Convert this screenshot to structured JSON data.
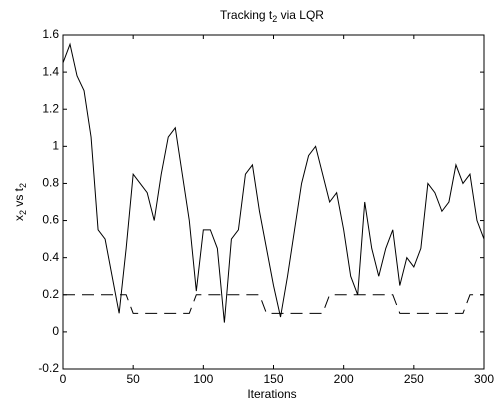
{
  "chart_data": {
    "type": "line",
    "title": [
      "Tracking t",
      "2",
      " via LQR"
    ],
    "y_label": [
      "x",
      "2",
      " vs t",
      "2"
    ],
    "x_label": "Iterations",
    "x": [
      0,
      5,
      10,
      15,
      20,
      25,
      30,
      35,
      40,
      45,
      50,
      55,
      60,
      65,
      70,
      75,
      80,
      85,
      90,
      95,
      100,
      105,
      110,
      115,
      120,
      125,
      130,
      135,
      140,
      145,
      150,
      155,
      160,
      165,
      170,
      175,
      180,
      185,
      190,
      195,
      200,
      205,
      210,
      215,
      220,
      225,
      230,
      235,
      240,
      245,
      250,
      255,
      260,
      265,
      270,
      275,
      280,
      285,
      290,
      295,
      300
    ],
    "series": [
      {
        "color": "#000000",
        "style": "solid",
        "values": [
          1.45,
          1.55,
          1.38,
          1.3,
          1.05,
          0.55,
          0.5,
          0.3,
          0.1,
          0.45,
          0.85,
          0.8,
          0.75,
          0.6,
          0.85,
          1.05,
          1.1,
          0.85,
          0.6,
          0.22,
          0.55,
          0.55,
          0.45,
          0.05,
          0.5,
          0.55,
          0.85,
          0.9,
          0.65,
          0.45,
          0.25,
          0.08,
          0.3,
          0.55,
          0.8,
          0.95,
          1.0,
          0.85,
          0.7,
          0.75,
          0.55,
          0.3,
          0.2,
          0.7,
          0.45,
          0.3,
          0.45,
          0.55,
          0.25,
          0.4,
          0.35,
          0.45,
          0.8,
          0.75,
          0.65,
          0.7,
          0.9,
          0.8,
          0.85,
          0.6,
          0.5
        ]
      },
      {
        "color": "#000000",
        "style": "dashed",
        "values": [
          0.2,
          0.2,
          0.2,
          0.2,
          0.2,
          0.2,
          0.2,
          0.2,
          0.2,
          0.2,
          0.1,
          0.1,
          0.1,
          0.1,
          0.1,
          0.1,
          0.1,
          0.1,
          0.1,
          0.2,
          0.2,
          0.2,
          0.2,
          0.2,
          0.2,
          0.2,
          0.2,
          0.2,
          0.2,
          0.1,
          0.1,
          0.1,
          0.1,
          0.1,
          0.1,
          0.1,
          0.1,
          0.1,
          0.2,
          0.2,
          0.2,
          0.2,
          0.2,
          0.2,
          0.2,
          0.2,
          0.2,
          0.2,
          0.1,
          0.1,
          0.1,
          0.1,
          0.1,
          0.1,
          0.1,
          0.1,
          0.1,
          0.1,
          0.2,
          0.2,
          0.2
        ]
      }
    ],
    "xlim": [
      0,
      300
    ],
    "xticks": [
      0,
      50,
      100,
      150,
      200,
      250,
      300
    ],
    "ylim": [
      -0.2,
      1.6
    ],
    "yticks": [
      -0.2,
      0,
      0.2,
      0.4,
      0.6,
      0.8,
      1,
      1.2,
      1.4,
      1.6
    ],
    "grid": false
  }
}
